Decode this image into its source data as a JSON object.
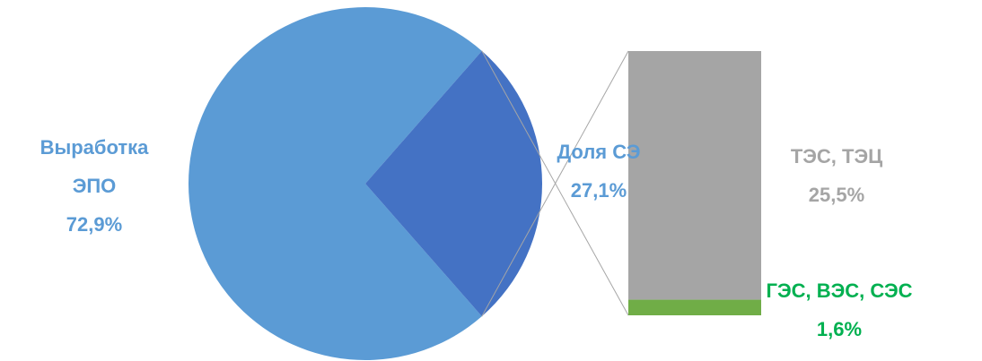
{
  "chart_data": {
    "type": "bar-of-pie",
    "pie": {
      "categories": [
        "Выработка ЭПО",
        "Доля СЭ"
      ],
      "values": [
        72.9,
        27.1
      ],
      "value_labels": [
        "72,9%",
        "27,1%"
      ],
      "colors": [
        "#5b9bd5",
        "#4472c4"
      ]
    },
    "bar": {
      "categories": [
        "ТЭС, ТЭЦ",
        "ГЭС, ВЭС, СЭС"
      ],
      "values": [
        25.5,
        1.6
      ],
      "value_labels": [
        "25,5%",
        "1,6%"
      ],
      "colors": [
        "#a5a5a5",
        "#70ad47"
      ]
    }
  }
}
